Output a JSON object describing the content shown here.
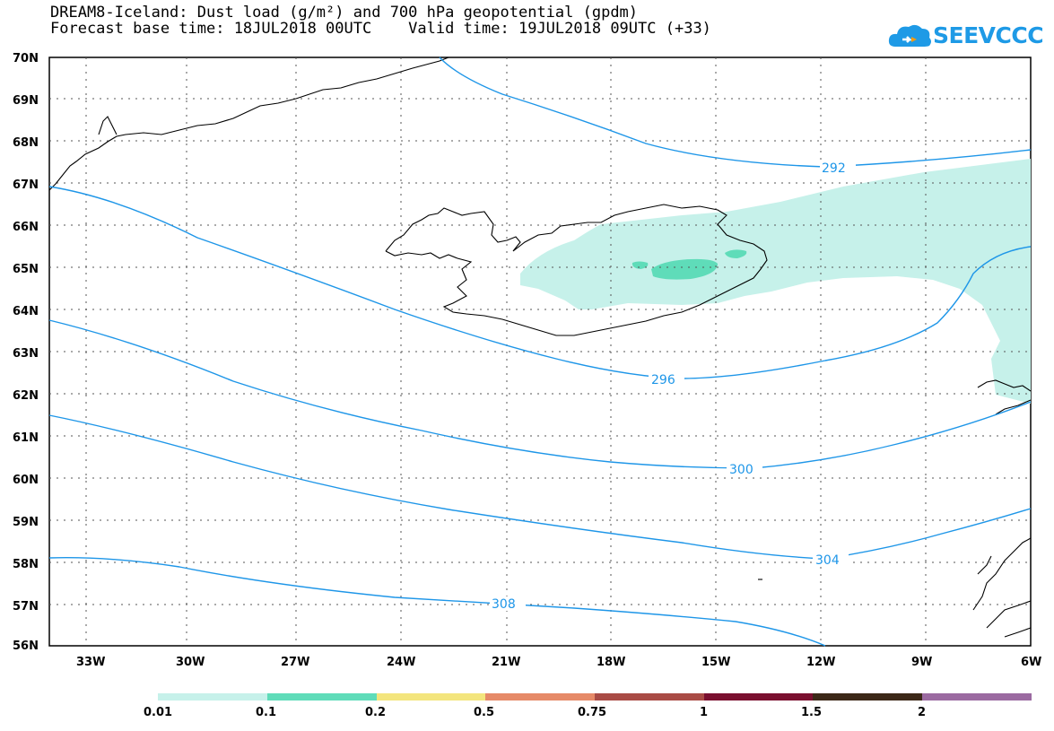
{
  "header": {
    "title": "DREAM8-Iceland: Dust load (g/m²) and 700 hPa geopotential (gpdm)",
    "subtitle": "Forecast base time: 18JUL2018 00UTC    Valid time: 19JUL2018 09UTC (+33)"
  },
  "logo": {
    "text": "SEEVCCC",
    "color": "#1e9ae6"
  },
  "map": {
    "lat_labels": [
      "70N",
      "69N",
      "68N",
      "67N",
      "66N",
      "65N",
      "64N",
      "63N",
      "62N",
      "61N",
      "60N",
      "59N",
      "58N",
      "57N",
      "56N"
    ],
    "lon_labels": [
      "33W",
      "30W",
      "27W",
      "24W",
      "21W",
      "18W",
      "15W",
      "12W",
      "9W",
      "6W"
    ],
    "contours": [
      {
        "label": "292"
      },
      {
        "label": "296"
      },
      {
        "label": "300"
      },
      {
        "label": "304"
      },
      {
        "label": "308"
      }
    ],
    "contour_color": "#1e96e8"
  },
  "colorbar": {
    "labels": [
      "0.01",
      "0.1",
      "0.2",
      "0.5",
      "0.75",
      "1",
      "1.5",
      "2"
    ],
    "colors": [
      "#c6f1ea",
      "#5fdcb9",
      "#f3e57d",
      "#e68a68",
      "#a94b45",
      "#7a0f2f",
      "#3c2818",
      "#9b6aa1"
    ]
  }
}
